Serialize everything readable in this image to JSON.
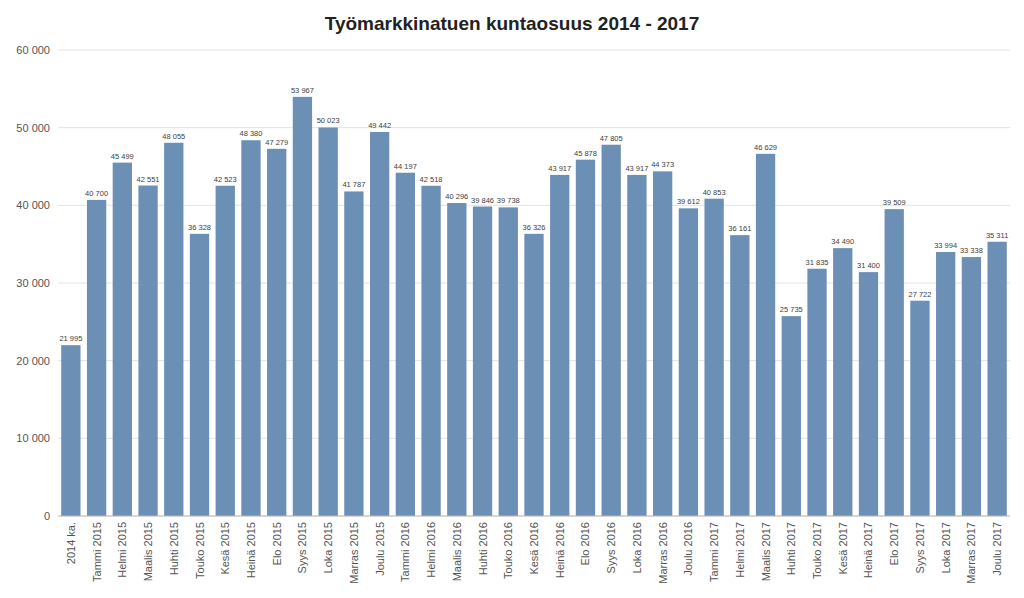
{
  "chart_data": {
    "type": "bar",
    "title": "Työmarkkinatuen kuntaosuus 2014 - 2017",
    "categories": [
      "2014 ka.",
      "Tammi 2015",
      "Helmi 2015",
      "Maalis 2015",
      "Huhti 2015",
      "Touko 2015",
      "Kesä 2015",
      "Heinä 2015",
      "Elo 2015",
      "Syys 2015",
      "Loka 2015",
      "Marras 2015",
      "Joulu 2015",
      "Tammi 2016",
      "Helmi 2016",
      "Maalis 2016",
      "Huhti 2016",
      "Touko 2016",
      "Kesä 2016",
      "Heinä 2016",
      "Elo 2016",
      "Syys 2016",
      "Loka 2016",
      "Marras 2016",
      "Joulu 2016",
      "Tammi 2017",
      "Helmi 2017",
      "Maalis 2017",
      "Huhti 2017",
      "Touko 2017",
      "Kesä 2017",
      "Heinä 2017",
      "Elo 2017",
      "Syys 2017",
      "Loka 2017",
      "Marras 2017",
      "Joulu 2017"
    ],
    "values": [
      21995,
      40700,
      45499,
      42551,
      48055,
      36328,
      42523,
      48380,
      47279,
      53967,
      50023,
      41787,
      49442,
      44197,
      42518,
      40296,
      39846,
      39738,
      36326,
      43917,
      45878,
      47805,
      43917,
      44373,
      39612,
      40853,
      36161,
      46629,
      25735,
      31835,
      34490,
      31400,
      39509,
      27722,
      33994,
      33338,
      35311
    ],
    "value_labels": [
      "21 995",
      "40 700",
      "45 499",
      "42 551",
      "48 055",
      "36 328",
      "42 523",
      "48 380",
      "47 279",
      "53 967",
      "50 023",
      "41 787",
      "49 442",
      "44 197",
      "42 518",
      "40 296",
      "39 846",
      "39 738",
      "36 326",
      "43 917",
      "45 878",
      "47 805",
      "43 917",
      "44 373",
      "39 612",
      "40 853",
      "36 161",
      "46 629",
      "25 735",
      "31 835",
      "34 490",
      "31 400",
      "39 509",
      "27 722",
      "33 994",
      "33 338",
      "35 311"
    ],
    "color": "#6b8fb5",
    "ylim": [
      0,
      60000
    ],
    "yticks": [
      0,
      {
        "value": 10000,
        "label": "10 000"
      },
      {
        "value": 20000,
        "label": "20 000"
      },
      {
        "value": 30000,
        "label": "30 000"
      },
      {
        "value": 40000,
        "label": "40 000"
      },
      {
        "value": 50000,
        "label": "50 000"
      },
      {
        "value": 60000,
        "label": "60 000"
      }
    ],
    "grid": true,
    "data_labels": true
  }
}
